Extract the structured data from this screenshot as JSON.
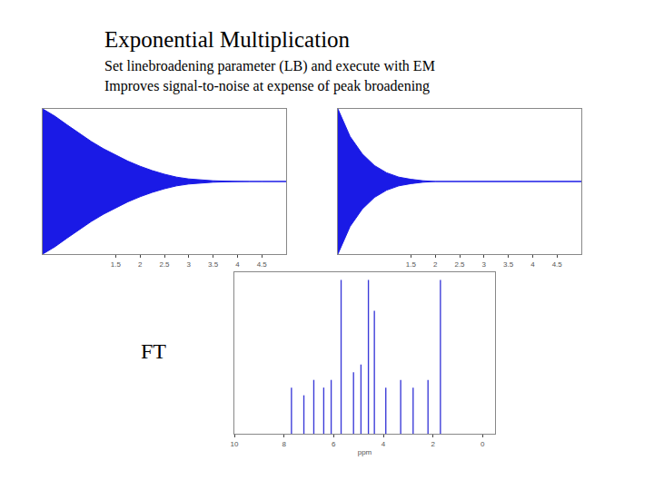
{
  "slide": {
    "title": "Exponential Multiplication",
    "lines": [
      "Set linebroadening parameter (LB) and execute with EM",
      "Improves signal-to-noise at expense of peak broadening"
    ],
    "label": "FT"
  },
  "chart_data": [
    {
      "type": "area",
      "color": "#1a1ae6",
      "tick_labels": "x",
      "grid": false,
      "x": [
        0,
        0.25,
        0.5,
        0.75,
        1,
        1.25,
        1.5,
        1.75,
        2,
        2.25,
        2.5,
        2.75,
        3,
        3.25,
        3.5,
        3.75,
        4,
        4.25,
        4.5,
        4.75,
        5
      ],
      "series": [
        {
          "values": [
            1,
            0.9,
            0.78,
            0.66,
            0.55,
            0.45,
            0.36,
            0.28,
            0.21,
            0.15,
            0.1,
            0.06,
            0.035,
            0.02,
            0.01,
            0.005,
            0,
            0,
            0,
            0,
            0
          ]
        },
        {
          "values": [
            -1,
            -0.9,
            -0.78,
            -0.66,
            -0.55,
            -0.45,
            -0.36,
            -0.28,
            -0.21,
            -0.15,
            -0.1,
            -0.06,
            -0.035,
            -0.02,
            -0.01,
            -0.005,
            0,
            0,
            0,
            0,
            0
          ]
        }
      ],
      "xlim": [
        0,
        5
      ],
      "xticks": [
        1.5,
        2,
        2.5,
        3,
        3.5,
        4,
        4.5
      ],
      "ylim": [
        -1,
        1
      ],
      "yticks": []
    },
    {
      "type": "area",
      "color": "#1a1ae6",
      "tick_labels": "x",
      "grid": false,
      "x": [
        0,
        0.25,
        0.5,
        0.75,
        1,
        1.25,
        1.5,
        1.75,
        2,
        2.25,
        2.5,
        2.75,
        3,
        3.25,
        3.5,
        3.75,
        4,
        4.25,
        4.5,
        4.75,
        5
      ],
      "series": [
        {
          "values": [
            1,
            0.62,
            0.38,
            0.22,
            0.12,
            0.06,
            0.03,
            0.01,
            0,
            0,
            0,
            0,
            0,
            0,
            0,
            0,
            0,
            0,
            0,
            0,
            0
          ]
        },
        {
          "values": [
            -1,
            -0.62,
            -0.38,
            -0.22,
            -0.12,
            -0.06,
            -0.03,
            -0.01,
            0,
            0,
            0,
            0,
            0,
            0,
            0,
            0,
            0,
            0,
            0,
            0,
            0
          ]
        }
      ],
      "xlim": [
        0,
        5
      ],
      "xticks": [
        1.5,
        2,
        2.5,
        3,
        3.5,
        4,
        4.5
      ],
      "ylim": [
        -1,
        1
      ],
      "yticks": []
    },
    {
      "type": "bar",
      "color": "#3a3ad8",
      "tick_labels": "x",
      "grid": false,
      "x_label": "ppm",
      "x": [
        7.7,
        7.2,
        6.8,
        6.4,
        6.1,
        5.7,
        5.2,
        4.9,
        4.6,
        4.36,
        3.9,
        3.3,
        2.8,
        2.2,
        1.7
      ],
      "values": [
        0.3,
        0.25,
        0.35,
        0.3,
        0.35,
        1.0,
        0.4,
        0.45,
        1.0,
        0.8,
        0.3,
        0.35,
        0.3,
        0.35,
        1.0
      ],
      "xlim": [
        10,
        -0.5
      ],
      "xticks": [
        10,
        8,
        6,
        4,
        2,
        0
      ],
      "ylim": [
        0,
        1.05
      ],
      "yticks": []
    }
  ]
}
